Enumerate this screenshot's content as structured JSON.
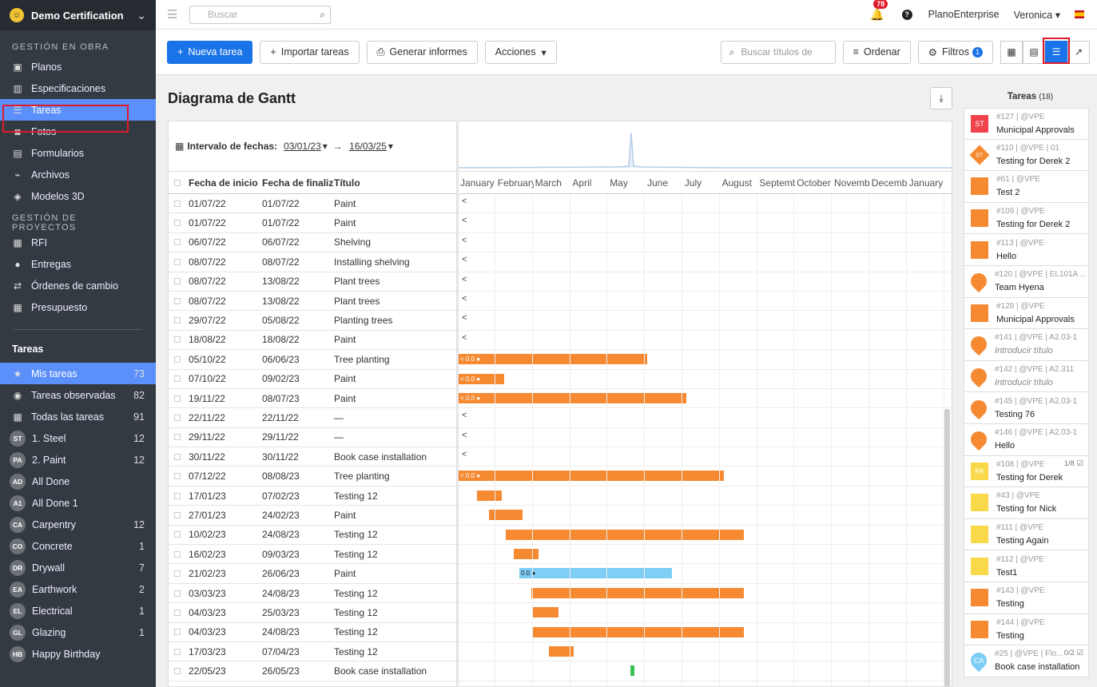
{
  "sidebar": {
    "project": "Demo Certification",
    "sections": [
      {
        "title": "GESTIÓN EN OBRA",
        "items": [
          {
            "label": "Planos",
            "icon": "map-icon"
          },
          {
            "label": "Especificaciones",
            "icon": "book-icon"
          },
          {
            "label": "Tareas",
            "icon": "list-icon"
          },
          {
            "label": "Fotos",
            "icon": "camera-icon"
          },
          {
            "label": "Formularios",
            "icon": "clipboard-icon"
          },
          {
            "label": "Archivos",
            "icon": "paperclip-icon"
          },
          {
            "label": "Modelos 3D",
            "icon": "cube-icon"
          }
        ]
      },
      {
        "title": "GESTIÓN DE PROYECTOS",
        "items": [
          {
            "label": "RFI",
            "icon": "rfi-icon"
          },
          {
            "label": "Entregas",
            "icon": "user-icon"
          },
          {
            "label": "Órdenes de cambio",
            "icon": "exchange-icon"
          },
          {
            "label": "Presupuesto",
            "icon": "calculator-icon"
          }
        ]
      }
    ],
    "tasks_title": "Tareas",
    "task_items": [
      {
        "label": "Mis tareas",
        "count": "73",
        "icon": "★"
      },
      {
        "label": "Tareas observadas",
        "count": "82",
        "icon": "◉"
      },
      {
        "label": "Todas las tareas",
        "count": "91",
        "icon": "▦"
      },
      {
        "label": "1. Steel",
        "count": "12",
        "badge": "ST"
      },
      {
        "label": "2. Paint",
        "count": "12",
        "badge": "PA"
      },
      {
        "label": "All Done",
        "count": "",
        "badge": "AD"
      },
      {
        "label": "All Done 1",
        "count": "",
        "badge": "A1"
      },
      {
        "label": "Carpentry",
        "count": "12",
        "badge": "CA"
      },
      {
        "label": "Concrete",
        "count": "1",
        "badge": "CO"
      },
      {
        "label": "Drywall",
        "count": "7",
        "badge": "DR"
      },
      {
        "label": "Earthwork",
        "count": "2",
        "badge": "EA"
      },
      {
        "label": "Electrical",
        "count": "1",
        "badge": "EL"
      },
      {
        "label": "Glazing",
        "count": "1",
        "badge": "GL"
      },
      {
        "label": "Happy Birthday",
        "count": "",
        "badge": "HB"
      }
    ]
  },
  "topbar": {
    "search_placeholder": "Buscar",
    "notifications": "78",
    "company": "PlanoEnterprise",
    "user": "Veronica"
  },
  "toolbar": {
    "new_task": "Nueva tarea",
    "import": "Importar tareas",
    "reports": "Generar informes",
    "actions": "Acciones",
    "search_placeholder": "Buscar títulos de",
    "sort": "Ordenar",
    "filters": "Filtros",
    "filters_count": "1"
  },
  "page": {
    "title": "Diagrama de Gantt",
    "range_label": "Intervalo de fechas:",
    "range_from": "03/01/23",
    "range_to": "16/03/25"
  },
  "grid": {
    "headers": [
      "Fecha de inicio",
      "Fecha de finaliz",
      "Título"
    ],
    "rows": [
      [
        "01/07/22",
        "01/07/22",
        "Paint"
      ],
      [
        "01/07/22",
        "01/07/22",
        "Paint"
      ],
      [
        "06/07/22",
        "06/07/22",
        "Shelving"
      ],
      [
        "08/07/22",
        "08/07/22",
        "Installing shelving"
      ],
      [
        "08/07/22",
        "13/08/22",
        "Plant trees"
      ],
      [
        "08/07/22",
        "13/08/22",
        "Plant trees"
      ],
      [
        "29/07/22",
        "05/08/22",
        "Planting trees"
      ],
      [
        "18/08/22",
        "18/08/22",
        "Paint"
      ],
      [
        "05/10/22",
        "06/06/23",
        "Tree planting"
      ],
      [
        "07/10/22",
        "09/02/23",
        "Paint"
      ],
      [
        "19/11/22",
        "08/07/23",
        "Paint"
      ],
      [
        "22/11/22",
        "22/11/22",
        "—"
      ],
      [
        "29/11/22",
        "29/11/22",
        "—"
      ],
      [
        "30/11/22",
        "30/11/22",
        "Book case installation"
      ],
      [
        "07/12/22",
        "08/08/23",
        "Tree planting"
      ],
      [
        "17/01/23",
        "07/02/23",
        "Testing 12"
      ],
      [
        "27/01/23",
        "24/02/23",
        "Paint"
      ],
      [
        "10/02/23",
        "24/08/23",
        "Testing 12"
      ],
      [
        "16/02/23",
        "09/03/23",
        "Testing 12"
      ],
      [
        "21/02/23",
        "26/06/23",
        "Paint"
      ],
      [
        "03/03/23",
        "24/08/23",
        "Testing 12"
      ],
      [
        "04/03/23",
        "25/03/23",
        "Testing 12"
      ],
      [
        "04/03/23",
        "24/08/23",
        "Testing 12"
      ],
      [
        "17/03/23",
        "07/04/23",
        "Testing 12"
      ],
      [
        "22/05/23",
        "26/05/23",
        "Book case installation"
      ]
    ]
  },
  "gantt": {
    "months": [
      "January",
      "February",
      "March",
      "April",
      "May",
      "June",
      "July",
      "August",
      "September",
      "October",
      "November",
      "December",
      "January"
    ],
    "bars": [
      null,
      null,
      null,
      null,
      null,
      null,
      null,
      null,
      {
        "s": 0,
        "e": 236,
        "c": "orange",
        "lbl": "0.0",
        "arrow": true
      },
      {
        "s": 0,
        "e": 57,
        "c": "orange",
        "lbl": "0.0",
        "arrow": true
      },
      {
        "s": 0,
        "e": 285,
        "c": "orange",
        "lbl": "0.0",
        "arrow": true
      },
      null,
      null,
      null,
      {
        "s": 0,
        "e": 332,
        "c": "orange",
        "lbl": "0.0",
        "arrow": true
      },
      {
        "s": 23,
        "e": 54,
        "c": "orange"
      },
      {
        "s": 38,
        "e": 80,
        "c": "orange"
      },
      {
        "s": 59,
        "e": 357,
        "c": "orange"
      },
      {
        "s": 69,
        "e": 100,
        "c": "orange"
      },
      {
        "s": 76,
        "e": 267,
        "c": "blue",
        "lbl": "0.0"
      },
      {
        "s": 91,
        "e": 357,
        "c": "orange"
      },
      {
        "s": 92,
        "e": 125,
        "c": "orange"
      },
      {
        "s": 93,
        "e": 357,
        "c": "orange"
      },
      {
        "s": 113,
        "e": 144,
        "c": "orange"
      },
      {
        "s": 215,
        "e": 220,
        "c": "green"
      }
    ]
  },
  "tasks_panel": {
    "title": "Tareas",
    "count": "(18)",
    "items": [
      {
        "meta": "#127 | @VPE",
        "name": "Municipal Approvals",
        "color": "#f0434b",
        "shape": "square",
        "txt": "ST"
      },
      {
        "meta": "#110 | @VPE | 01",
        "name": "Testing for Derek 2",
        "color": "#f58a33",
        "shape": "diamond",
        "txt": "ST"
      },
      {
        "meta": "#61 | @VPE",
        "name": "Test 2",
        "color": "#f58a33",
        "shape": "square",
        "txt": ""
      },
      {
        "meta": "#109 | @VPE",
        "name": "Testing for Derek 2",
        "color": "#f58a33",
        "shape": "square",
        "txt": ""
      },
      {
        "meta": "#113 | @VPE",
        "name": "Hello",
        "color": "#f58a33",
        "shape": "square",
        "txt": ""
      },
      {
        "meta": "#120 | @VPE | EL101A ...",
        "name": "Team Hyena",
        "color": "#f58a33",
        "shape": "drop",
        "txt": ""
      },
      {
        "meta": "#128 | @VPE",
        "name": "Municipal Approvals",
        "color": "#f58a33",
        "shape": "square",
        "txt": ""
      },
      {
        "meta": "#141 | @VPE | A2.03-1",
        "name": "Introducir título",
        "color": "#f58a33",
        "shape": "drop",
        "txt": "",
        "italic": true
      },
      {
        "meta": "#142 | @VPE | A2.311",
        "name": "Introducir título",
        "color": "#f58a33",
        "shape": "drop",
        "txt": "",
        "italic": true
      },
      {
        "meta": "#145 | @VPE | A2.03-1",
        "name": "Testing 76",
        "color": "#f58a33",
        "shape": "drop",
        "txt": ""
      },
      {
        "meta": "#146 | @VPE | A2.03-1",
        "name": "Hello",
        "color": "#f58a33",
        "shape": "drop",
        "txt": ""
      },
      {
        "meta": "#108 | @VPE",
        "name": "Testing for Derek",
        "color": "#f9d84a",
        "shape": "square",
        "txt": "PA",
        "extra": "1/8 ☑"
      },
      {
        "meta": "#43 | @VPE",
        "name": "Testing for Nick",
        "color": "#f9d84a",
        "shape": "square",
        "txt": ""
      },
      {
        "meta": "#111 | @VPE",
        "name": "Testing Again",
        "color": "#f9d84a",
        "shape": "square",
        "txt": ""
      },
      {
        "meta": "#112 | @VPE",
        "name": "Test1",
        "color": "#f9d84a",
        "shape": "square",
        "txt": ""
      },
      {
        "meta": "#143 | @VPE",
        "name": "Testing",
        "color": "#f58a33",
        "shape": "square",
        "txt": ""
      },
      {
        "meta": "#144 | @VPE",
        "name": "Testing",
        "color": "#f58a33",
        "shape": "square",
        "txt": ""
      },
      {
        "meta": "#25 | @VPE | Flo...",
        "name": "Book case installation",
        "color": "#7dcdf5",
        "shape": "drop",
        "txt": "CA",
        "extra": "0/2 ☑"
      }
    ]
  }
}
